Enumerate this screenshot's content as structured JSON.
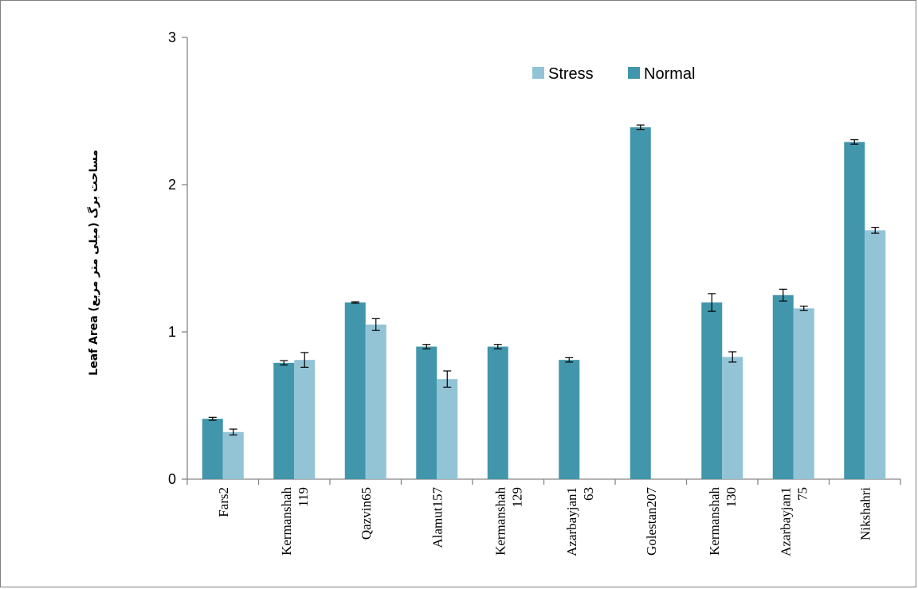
{
  "chart_data": {
    "type": "bar",
    "ylabel": "Leaf Area (میلی متر مربع) مساحت برگ",
    "ylim": [
      0,
      3
    ],
    "yticks": [
      "0",
      "1",
      "2",
      "3"
    ],
    "categories": [
      [
        "Fars2"
      ],
      [
        "Kermanshah",
        "119"
      ],
      [
        "Qazvin65"
      ],
      [
        "Alamut157"
      ],
      [
        "Kermanshah",
        "129"
      ],
      [
        "Azarbayjan1",
        "63"
      ],
      [
        "Golestan207"
      ],
      [
        "Kermanshah",
        "130"
      ],
      [
        "Azarbayjan1",
        "75"
      ],
      [
        "Nikshahri"
      ]
    ],
    "series": [
      {
        "name": "Normal",
        "color": "#4196ab",
        "values": [
          0.41,
          0.79,
          1.2,
          0.9,
          0.9,
          0.81,
          2.39,
          1.2,
          1.25,
          2.29
        ],
        "errors": [
          0.01,
          0.015,
          0.005,
          0.015,
          0.015,
          0.015,
          0.015,
          0.06,
          0.04,
          0.015
        ]
      },
      {
        "name": "Stress",
        "color": "#92c4d6",
        "values": [
          0.32,
          0.81,
          1.05,
          0.68,
          null,
          null,
          null,
          0.83,
          1.16,
          1.69
        ],
        "errors": [
          0.02,
          0.05,
          0.04,
          0.055,
          null,
          null,
          null,
          0.035,
          0.015,
          0.02
        ]
      }
    ],
    "legend_order": [
      "Stress",
      "Normal"
    ],
    "legend_position": "top-right",
    "grid": false
  }
}
